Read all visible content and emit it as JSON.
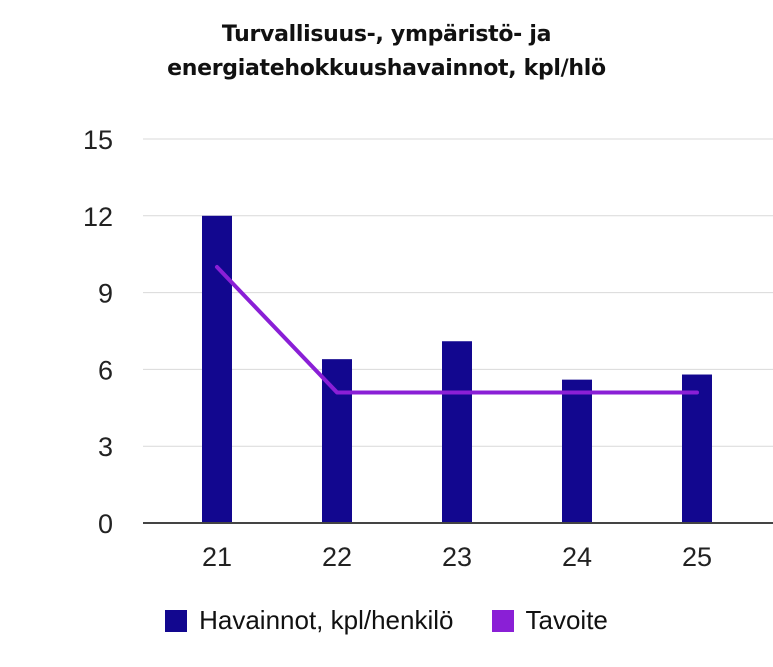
{
  "chart_data": {
    "type": "bar",
    "title_lines": [
      "Turvallisuus-, ympäristö- ja",
      "energiatehokkuushavainnot, kpl/hlö"
    ],
    "categories": [
      "21",
      "22",
      "23",
      "24",
      "25"
    ],
    "series": [
      {
        "name": "Havainnot, kpl/henkilö",
        "type": "bar",
        "color": "#12078f",
        "values": [
          12.0,
          6.4,
          7.1,
          5.6,
          5.8
        ]
      },
      {
        "name": "Tavoite",
        "type": "line",
        "color": "#8a1fd6",
        "values": [
          10.0,
          5.1,
          5.1,
          5.1,
          5.1
        ]
      }
    ],
    "ylim": [
      0,
      15
    ],
    "yticks": [
      "0",
      "3",
      "6",
      "9",
      "12",
      "15"
    ],
    "grid": true,
    "legend_position": "bottom"
  }
}
